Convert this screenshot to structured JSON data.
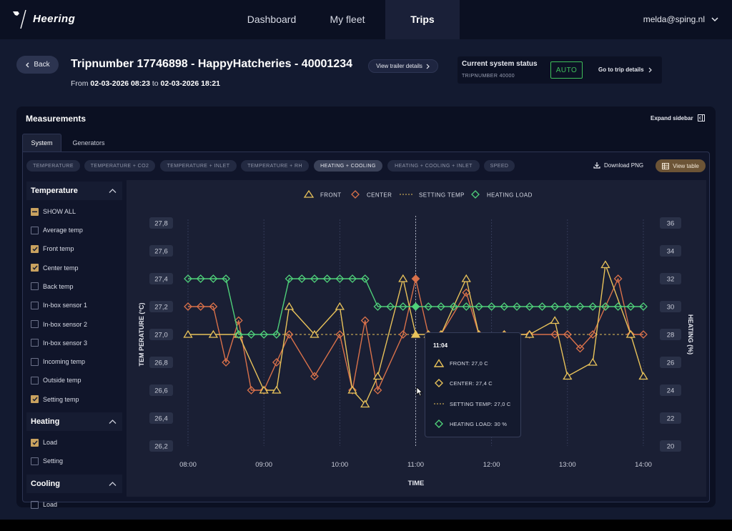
{
  "app": {
    "logo_text": "Heering"
  },
  "nav": {
    "items": [
      {
        "label": "Dashboard"
      },
      {
        "label": "My fleet"
      },
      {
        "label": "Trips"
      }
    ],
    "user_email": "melda@sping.nl"
  },
  "header": {
    "back_label": "Back",
    "title": "Tripnumber 17746898 - HappyHatcheries - 40001234",
    "period_from_label": "From",
    "period_from": "02-03-2026 08:23",
    "period_to_label": "to",
    "period_to": "02-03-2026 18:21",
    "trailer_button": "View trailer details"
  },
  "status": {
    "title": "Current system status",
    "sub": "TRIPNUMBER 40000",
    "badge": "AUTO",
    "link": "Go to trip details"
  },
  "panel": {
    "title": "Measurements",
    "expand_label": "Expand sidebar",
    "tabs": [
      {
        "label": "System"
      },
      {
        "label": "Generators"
      }
    ],
    "chips": [
      {
        "label": "TEMPERATURE"
      },
      {
        "label": "TEMPERATURE + CO2"
      },
      {
        "label": "TEMPERATURE + INLET"
      },
      {
        "label": "TEMPERATURE + RH"
      },
      {
        "label": "HEATING + COOLING"
      },
      {
        "label": "HEATING + COOLING + INLET"
      },
      {
        "label": "SPEED"
      }
    ],
    "active_chip": "HEATING + COOLING",
    "download_label": "Download PNG",
    "view_table_label": "View table"
  },
  "sidebar": {
    "temperature": {
      "title": "Temperature",
      "show_all": "SHOW ALL",
      "items": [
        {
          "label": "Average temp",
          "checked": false
        },
        {
          "label": "Front temp",
          "checked": true
        },
        {
          "label": "Center temp",
          "checked": true
        },
        {
          "label": "Back temp",
          "checked": false
        },
        {
          "label": "In-box sensor 1",
          "checked": false
        },
        {
          "label": "In-box sensor 2",
          "checked": false
        },
        {
          "label": "In-box sensor 3",
          "checked": false
        },
        {
          "label": "Incoming temp",
          "checked": false
        },
        {
          "label": "Outside temp",
          "checked": false
        },
        {
          "label": "Setting temp",
          "checked": true
        }
      ]
    },
    "heating": {
      "title": "Heating",
      "items": [
        {
          "label": "Load",
          "checked": true
        },
        {
          "label": "Setting",
          "checked": false
        }
      ]
    },
    "cooling": {
      "title": "Cooling",
      "items": [
        {
          "label": "Load",
          "checked": false
        },
        {
          "label": "Setting",
          "checked": false
        }
      ]
    }
  },
  "colors": {
    "front": "#e8c25a",
    "center": "#d9714a",
    "setting": "#e8c25a",
    "heating": "#4fd17a",
    "accent": "#c9a25f",
    "auto": "#3fbe5a"
  },
  "chart_data": {
    "type": "line",
    "xlabel": "TIME",
    "ylabel_left": "TEM PERATURE (°C)",
    "ylabel_right": "HEATING (%)",
    "x_ticks": [
      "08:00",
      "09:00",
      "10:00",
      "11:00",
      "12:00",
      "13:00",
      "14:00"
    ],
    "y_left_ticks": [
      "27,8",
      "27,6",
      "27,4",
      "27,2",
      "27,0",
      "26,8",
      "26,6",
      "26,4",
      "26,2"
    ],
    "y_right_ticks": [
      "36",
      "34",
      "32",
      "30",
      "28",
      "26",
      "24",
      "22",
      "20"
    ],
    "ylim_left": [
      26.2,
      27.8
    ],
    "ylim_right": [
      20,
      36
    ],
    "legend_position": "top",
    "series": [
      {
        "name": "FRONT",
        "axis": "left",
        "marker": "triangle",
        "x": [
          "08:00",
          "08:20",
          "08:40",
          "09:00",
          "09:10",
          "09:20",
          "09:40",
          "10:00",
          "10:10",
          "10:20",
          "10:30",
          "10:50",
          "11:00",
          "11:10",
          "11:20",
          "11:40",
          "11:50",
          "12:10",
          "12:30",
          "12:50",
          "13:00",
          "13:20",
          "13:30",
          "13:50",
          "14:00"
        ],
        "values": [
          27.0,
          27.0,
          27.0,
          26.6,
          26.6,
          27.2,
          27.0,
          27.2,
          26.6,
          26.5,
          26.7,
          27.4,
          27.0,
          27.0,
          27.0,
          27.4,
          27.0,
          27.0,
          27.0,
          27.1,
          26.7,
          26.8,
          27.5,
          27.0,
          26.7
        ]
      },
      {
        "name": "CENTER",
        "axis": "left",
        "marker": "diamond",
        "x": [
          "08:00",
          "08:10",
          "08:20",
          "08:30",
          "08:40",
          "08:50",
          "09:00",
          "09:10",
          "09:20",
          "09:40",
          "10:00",
          "10:10",
          "10:20",
          "10:30",
          "10:50",
          "11:00",
          "11:10",
          "11:20",
          "11:40",
          "11:50",
          "12:10",
          "12:30",
          "12:50",
          "13:00",
          "13:10",
          "13:20",
          "13:30",
          "13:40",
          "13:50",
          "14:00"
        ],
        "values": [
          27.2,
          27.2,
          27.2,
          26.8,
          27.1,
          26.6,
          26.6,
          26.8,
          27.0,
          26.7,
          27.0,
          26.6,
          27.1,
          26.6,
          27.0,
          27.4,
          27.0,
          27.0,
          27.3,
          27.0,
          27.0,
          27.0,
          27.0,
          27.0,
          26.9,
          27.0,
          27.2,
          27.4,
          27.0,
          27.0
        ]
      },
      {
        "name": "SETTING TEMP",
        "axis": "left",
        "marker": "dashed",
        "x": [
          "08:00",
          "14:00"
        ],
        "values": [
          27.0,
          27.0
        ]
      },
      {
        "name": "HEATING LOAD",
        "axis": "right",
        "marker": "diamond",
        "x": [
          "08:00",
          "08:10",
          "08:20",
          "08:30",
          "08:40",
          "08:50",
          "09:00",
          "09:10",
          "09:20",
          "09:30",
          "09:40",
          "09:50",
          "10:00",
          "10:10",
          "10:20",
          "10:30",
          "10:40",
          "10:50",
          "11:00",
          "11:10",
          "11:20",
          "11:30",
          "11:40",
          "11:50",
          "12:00",
          "12:10",
          "12:20",
          "12:30",
          "12:40",
          "12:50",
          "13:00",
          "13:10",
          "13:20",
          "13:30",
          "13:40",
          "13:50",
          "14:00"
        ],
        "values": [
          32,
          32,
          32,
          32,
          28,
          28,
          28,
          28,
          32,
          32,
          32,
          32,
          32,
          32,
          32,
          30,
          30,
          30,
          30,
          30,
          30,
          30,
          30,
          30,
          30,
          30,
          30,
          30,
          30,
          30,
          30,
          30,
          30,
          30,
          30,
          30,
          30
        ]
      }
    ],
    "crosshair_x": "11:00",
    "tooltip": {
      "time": "11:04",
      "rows": [
        {
          "label": "FRONT: 27,0 C",
          "marker": "triangle"
        },
        {
          "label": "CENTER: 27,4 C",
          "marker": "diamond"
        },
        {
          "label": "SETTING TEMP: 27,0 C",
          "marker": "dashed"
        },
        {
          "label": "HEATING LOAD: 30 %",
          "marker": "diamond-green"
        }
      ]
    }
  }
}
